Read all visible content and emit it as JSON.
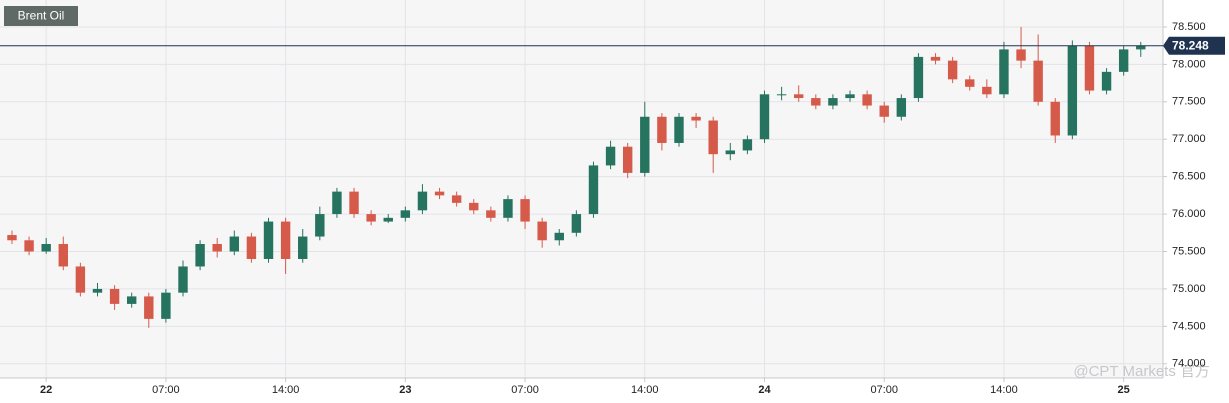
{
  "chart_data": {
    "type": "candlestick",
    "title": "Brent Oil",
    "x": [
      -2,
      -1,
      0,
      1,
      2,
      3,
      4,
      5,
      6,
      7,
      8,
      9,
      10,
      11,
      12,
      13,
      14,
      15,
      16,
      17,
      18,
      19,
      20,
      21,
      22,
      23,
      24,
      25,
      26,
      27,
      28,
      29,
      30,
      31,
      32,
      33,
      34,
      35,
      36,
      37,
      38,
      39,
      40,
      41,
      42,
      43,
      44,
      45,
      46,
      47,
      48,
      49,
      50,
      51,
      52,
      53,
      54,
      55,
      56,
      57,
      58,
      59,
      60,
      61,
      62,
      63,
      64
    ],
    "open": [
      75.72,
      75.65,
      75.5,
      75.6,
      75.3,
      74.95,
      75.0,
      74.8,
      74.9,
      74.6,
      74.95,
      75.3,
      75.6,
      75.5,
      75.7,
      75.4,
      75.9,
      75.4,
      75.7,
      76.0,
      76.3,
      76.0,
      75.9,
      75.95,
      76.05,
      76.3,
      76.25,
      76.15,
      76.05,
      75.95,
      76.2,
      75.9,
      75.65,
      75.75,
      76.0,
      76.65,
      76.9,
      76.55,
      77.3,
      76.95,
      77.3,
      77.25,
      76.8,
      76.85,
      77.0,
      77.6,
      77.6,
      77.55,
      77.45,
      77.55,
      77.6,
      77.45,
      77.3,
      77.55,
      78.1,
      78.05,
      77.8,
      77.7,
      77.6,
      78.2,
      78.05,
      77.5,
      77.05,
      78.25,
      77.65,
      77.9,
      78.2
    ],
    "high": [
      75.78,
      75.7,
      75.68,
      75.7,
      75.35,
      75.08,
      75.05,
      74.95,
      74.95,
      75.0,
      75.38,
      75.65,
      75.68,
      75.78,
      75.75,
      75.95,
      75.95,
      75.8,
      76.1,
      76.35,
      76.35,
      76.05,
      76.0,
      76.1,
      76.4,
      76.35,
      76.3,
      76.2,
      76.1,
      76.25,
      76.25,
      75.95,
      75.8,
      76.05,
      76.7,
      76.98,
      76.95,
      77.5,
      77.35,
      77.35,
      77.35,
      77.3,
      76.95,
      77.05,
      77.65,
      77.7,
      77.72,
      77.6,
      77.6,
      77.65,
      77.65,
      77.5,
      77.6,
      78.15,
      78.15,
      78.1,
      77.85,
      77.8,
      78.3,
      78.5,
      78.4,
      77.55,
      78.32,
      78.3,
      77.95,
      78.25,
      78.3
    ],
    "low": [
      75.6,
      75.45,
      75.47,
      75.25,
      74.9,
      74.9,
      74.72,
      74.75,
      74.48,
      74.55,
      74.9,
      75.25,
      75.42,
      75.45,
      75.35,
      75.35,
      75.2,
      75.35,
      75.65,
      75.95,
      75.95,
      75.85,
      75.88,
      75.9,
      76.0,
      76.2,
      76.1,
      76.0,
      75.9,
      75.9,
      75.8,
      75.55,
      75.58,
      75.7,
      75.95,
      76.6,
      76.48,
      76.5,
      76.85,
      76.9,
      77.15,
      76.55,
      76.72,
      76.8,
      76.95,
      77.52,
      77.5,
      77.4,
      77.4,
      77.5,
      77.4,
      77.22,
      77.25,
      77.5,
      78.0,
      77.75,
      77.65,
      77.55,
      77.55,
      77.95,
      77.45,
      76.95,
      77.0,
      77.6,
      77.6,
      77.85,
      78.1
    ],
    "close": [
      75.65,
      75.5,
      75.6,
      75.3,
      74.95,
      75.0,
      74.8,
      74.9,
      74.6,
      74.95,
      75.3,
      75.6,
      75.5,
      75.7,
      75.4,
      75.9,
      75.4,
      75.7,
      76.0,
      76.3,
      76.0,
      75.9,
      75.95,
      76.05,
      76.3,
      76.25,
      76.15,
      76.05,
      75.95,
      76.2,
      75.9,
      75.65,
      75.75,
      76.0,
      76.65,
      76.9,
      76.55,
      77.3,
      76.95,
      77.3,
      77.25,
      76.8,
      76.85,
      77.0,
      77.6,
      77.6,
      77.55,
      77.45,
      77.55,
      77.6,
      77.45,
      77.3,
      77.55,
      78.1,
      78.05,
      77.8,
      77.7,
      77.6,
      78.2,
      78.05,
      77.5,
      77.05,
      78.25,
      77.65,
      77.9,
      78.2,
      78.248
    ],
    "up_color": "#26735f",
    "down_color": "#d65a4a",
    "last_price": 78.248,
    "xlim": [
      -2.7,
      65.3
    ],
    "xticks": [
      {
        "value": 0,
        "label": "22"
      },
      {
        "value": 7,
        "label": "07:00"
      },
      {
        "value": 14,
        "label": "14:00"
      },
      {
        "value": 21,
        "label": "23"
      },
      {
        "value": 28,
        "label": "07:00"
      },
      {
        "value": 35,
        "label": "14:00"
      },
      {
        "value": 42,
        "label": "24"
      },
      {
        "value": 49,
        "label": "07:00"
      },
      {
        "value": 56,
        "label": "14:00"
      },
      {
        "value": 63,
        "label": "25"
      }
    ],
    "ylim": [
      73.81,
      78.86
    ],
    "yticks": [
      {
        "value": 74.0,
        "label": "74.000"
      },
      {
        "value": 74.5,
        "label": "74.500"
      },
      {
        "value": 75.0,
        "label": "75.000"
      },
      {
        "value": 75.5,
        "label": "75.500"
      },
      {
        "value": 76.0,
        "label": "76.000"
      },
      {
        "value": 76.5,
        "label": "76.500"
      },
      {
        "value": 77.0,
        "label": "77.000"
      },
      {
        "value": 77.5,
        "label": "77.500"
      },
      {
        "value": 78.0,
        "label": "78.000"
      },
      {
        "value": 78.5,
        "label": "78.500"
      }
    ],
    "grid": true,
    "watermark": "@CPT Markets 官方"
  }
}
